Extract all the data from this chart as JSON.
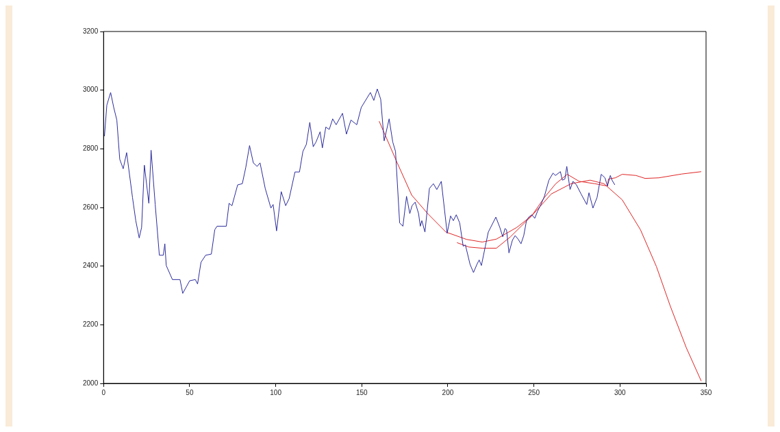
{
  "chart_data": {
    "type": "line",
    "xlim": [
      0,
      350
    ],
    "xticks": [
      0,
      50,
      100,
      150,
      200,
      250,
      300,
      350
    ],
    "ylim": [
      2000,
      3200
    ],
    "yticks": [
      2000,
      2200,
      2400,
      2600,
      2800,
      3000,
      3200
    ],
    "grid": false,
    "legend": false,
    "line_style": "solid",
    "marker": "none",
    "series": [
      {
        "color": "#2b2b9c",
        "x": [
          0.5,
          1.9,
          4.1,
          5.9,
          7.7,
          9.4,
          11.4,
          13.4,
          16.8,
          18.7,
          20.7,
          22.1,
          23.7,
          26.3,
          27.6,
          30.0,
          32.4,
          34.7,
          35.6,
          36.4,
          40.0,
          44.4,
          46.0,
          50.0,
          53.3,
          54.6,
          56.6,
          59.3,
          62.6,
          64.6,
          65.9,
          71.3,
          72.9,
          74.6,
          77.9,
          80.6,
          82.6,
          84.8,
          87.0,
          89.2,
          90.9,
          93.9,
          97.2,
          98.5,
          100.5,
          103.2,
          105.8,
          107.8,
          111.2,
          113.8,
          115.8,
          117.8,
          119.8,
          121.8,
          123.4,
          125.8,
          127.1,
          129.1,
          131.1,
          133.1,
          135.1,
          138.8,
          141.1,
          143.7,
          147.1,
          149.7,
          155.0,
          157.0,
          159.0,
          161.0,
          163.0,
          165.9,
          168.0,
          169.6,
          172.0,
          173.9,
          176.0,
          177.9,
          179.2,
          181.0,
          183.0,
          184.0,
          184.9,
          186.7,
          189.3,
          191.6,
          193.6,
          196.2,
          199.6,
          201.6,
          203.2,
          204.9,
          206.9,
          208.9,
          210.2,
          212.9,
          214.9,
          216.9,
          218.2,
          219.5,
          221.8,
          223.5,
          227.9,
          230.2,
          231.9,
          233.2,
          234.1,
          235.5,
          237.5,
          239.1,
          240.8,
          242.5,
          244.1,
          245.7,
          247.0,
          248.8,
          250.5,
          252.1,
          254.1,
          256.1,
          258.7,
          261.1,
          262.5,
          265.4,
          266.5,
          268.0,
          269.1,
          271.0,
          272.7,
          274.7,
          277.4,
          280.7,
          282.0,
          284.3,
          286.7,
          289.1,
          291.3,
          292.7,
          294.4,
          295.4,
          297.0
        ],
        "values": [
          2843,
          2949,
          2992,
          2941,
          2898,
          2764,
          2732,
          2787,
          2634,
          2555,
          2496,
          2532,
          2744,
          2614,
          2795,
          2610,
          2437,
          2437,
          2476,
          2402,
          2354,
          2354,
          2307,
          2350,
          2354,
          2339,
          2413,
          2437,
          2441,
          2524,
          2536,
          2536,
          2614,
          2606,
          2677,
          2681,
          2736,
          2811,
          2752,
          2740,
          2752,
          2665,
          2598,
          2610,
          2520,
          2654,
          2606,
          2630,
          2721,
          2721,
          2791,
          2815,
          2890,
          2807,
          2823,
          2858,
          2803,
          2874,
          2866,
          2902,
          2882,
          2921,
          2850,
          2898,
          2882,
          2941,
          2992,
          2965,
          3004,
          2969,
          2827,
          2902,
          2823,
          2791,
          2547,
          2536,
          2638,
          2579,
          2606,
          2618,
          2579,
          2536,
          2555,
          2516,
          2665,
          2681,
          2661,
          2689,
          2512,
          2571,
          2555,
          2575,
          2547,
          2468,
          2472,
          2406,
          2378,
          2406,
          2421,
          2402,
          2468,
          2516,
          2567,
          2532,
          2500,
          2528,
          2524,
          2445,
          2488,
          2504,
          2492,
          2476,
          2504,
          2555,
          2567,
          2575,
          2563,
          2587,
          2610,
          2638,
          2693,
          2717,
          2709,
          2722,
          2693,
          2697,
          2740,
          2661,
          2689,
          2677,
          2646,
          2610,
          2650,
          2598,
          2634,
          2713,
          2701,
          2673,
          2709,
          2693,
          2677
        ]
      },
      {
        "color": "#e02424",
        "x": [
          160.1,
          170.3,
          179,
          188.3,
          198.9,
          210.9,
          220,
          228.2,
          240.1,
          248.8,
          260.1,
          271.6,
          282.7,
          290.7,
          301.3,
          311.9,
          321.2,
          329.2,
          338.5,
          347.2
        ],
        "values": [
          2894,
          2756,
          2642,
          2579,
          2516,
          2491,
          2482,
          2492,
          2532,
          2572,
          2646,
          2681,
          2693,
          2681,
          2626,
          2524,
          2398,
          2264,
          2122,
          2008
        ]
      },
      {
        "color": "#e02424",
        "x": [
          205.3,
          212.2,
          220,
          228.2,
          236.4,
          248.8,
          256.1,
          262.7,
          269.4,
          276.3,
          285.3,
          292.7,
          293.3,
          297.3,
          301.3,
          309.3,
          314.6,
          322.6,
          335.9,
          347.2
        ],
        "values": [
          2480,
          2465,
          2461,
          2461,
          2500,
          2572,
          2634,
          2681,
          2713,
          2689,
          2681,
          2673,
          2697,
          2701,
          2713,
          2709,
          2699,
          2701,
          2714,
          2722
        ]
      }
    ]
  }
}
